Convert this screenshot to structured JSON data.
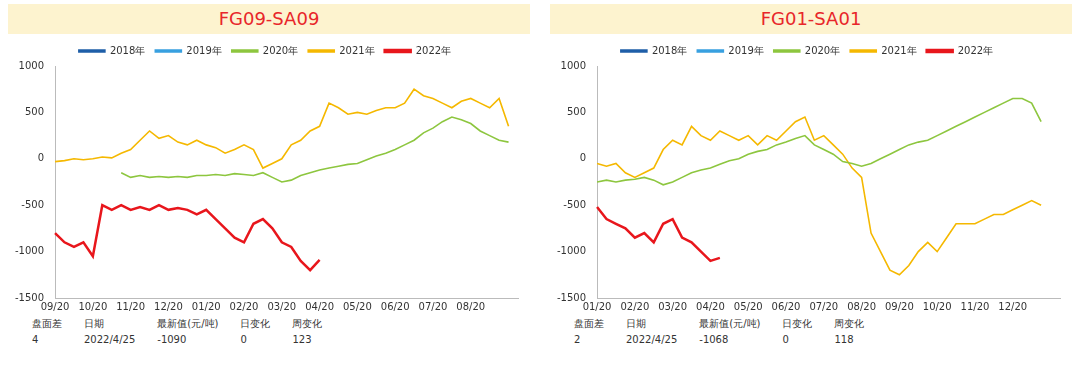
{
  "chart_data": [
    {
      "type": "line",
      "title": "FG09-SA09",
      "categories": [
        "09/20",
        null,
        null,
        null,
        "10/20",
        null,
        null,
        null,
        "11/20",
        null,
        null,
        null,
        "12/20",
        null,
        null,
        null,
        "01/20",
        null,
        null,
        null,
        "02/20",
        null,
        null,
        null,
        "03/20",
        null,
        null,
        null,
        "04/20",
        null,
        null,
        null,
        "05/20",
        null,
        null,
        null,
        "06/20",
        null,
        null,
        null,
        "07/20",
        null,
        null,
        null,
        "08/20",
        null,
        null,
        null,
        null,
        null
      ],
      "series": [
        {
          "name": "2018年",
          "color": "#1f5fa8",
          "values": [
            null,
            null,
            null,
            null,
            null,
            null,
            null,
            null,
            null,
            null,
            null,
            null,
            null,
            null,
            null,
            null,
            null,
            null,
            null,
            null,
            null,
            null,
            null,
            null,
            null,
            null,
            null,
            null,
            null,
            null,
            null,
            null,
            null,
            null,
            null,
            null,
            null,
            null,
            null,
            null,
            null,
            null,
            null,
            null,
            null,
            null,
            null,
            null,
            null,
            null
          ]
        },
        {
          "name": "2019年",
          "color": "#39a0e0",
          "values": [
            null,
            null,
            null,
            null,
            null,
            null,
            null,
            null,
            null,
            null,
            null,
            null,
            null,
            null,
            null,
            null,
            null,
            null,
            null,
            null,
            null,
            null,
            null,
            null,
            null,
            null,
            null,
            null,
            null,
            null,
            null,
            null,
            null,
            null,
            null,
            null,
            null,
            null,
            null,
            null,
            null,
            null,
            null,
            null,
            null,
            null,
            null,
            null,
            null,
            null
          ]
        },
        {
          "name": "2020年",
          "color": "#8dc63f",
          "values": [
            null,
            null,
            null,
            null,
            null,
            null,
            null,
            -150,
            -200,
            -180,
            -200,
            -190,
            -200,
            -190,
            -200,
            -180,
            -180,
            -170,
            -180,
            -160,
            -170,
            -180,
            -150,
            -200,
            -250,
            -230,
            -180,
            -150,
            -120,
            -100,
            -80,
            -60,
            -50,
            -10,
            30,
            60,
            100,
            150,
            200,
            280,
            330,
            400,
            450,
            420,
            380,
            300,
            250,
            200,
            180,
            null
          ]
        },
        {
          "name": "2021年",
          "color": "#f5b800",
          "values": [
            -30,
            -20,
            0,
            -10,
            0,
            20,
            10,
            60,
            100,
            200,
            300,
            220,
            250,
            180,
            150,
            200,
            150,
            120,
            60,
            100,
            150,
            100,
            -100,
            -50,
            0,
            150,
            200,
            300,
            350,
            600,
            550,
            480,
            500,
            480,
            520,
            550,
            550,
            600,
            750,
            680,
            650,
            600,
            550,
            620,
            650,
            600,
            550,
            650,
            350,
            null
          ]
        },
        {
          "name": "2022年",
          "color": "#e8161c",
          "values": [
            -800,
            -900,
            -950,
            -900,
            -1050,
            -500,
            -550,
            -500,
            -550,
            -520,
            -550,
            -500,
            -550,
            -530,
            -550,
            -600,
            -550,
            -650,
            -750,
            -850,
            -900,
            -700,
            -650,
            -750,
            -900,
            -950,
            -1100,
            -1200,
            -1090,
            null,
            null,
            null,
            null,
            null,
            null,
            null,
            null,
            null,
            null,
            null,
            null,
            null,
            null,
            null,
            null,
            null,
            null,
            null,
            null,
            null
          ]
        }
      ],
      "ylim": [
        -1500,
        1000
      ],
      "yticks": [
        -1500,
        -1000,
        -500,
        0,
        500,
        1000
      ],
      "grid": false,
      "legend": "top",
      "table": {
        "header": [
          "盘面差",
          "日期",
          "最新值(元/吨)",
          "日变化",
          "周变化"
        ],
        "rows": [
          [
            4,
            "2022/4/25",
            -1090,
            0,
            123
          ]
        ]
      }
    },
    {
      "type": "line",
      "title": "FG01-SA01",
      "categories": [
        "01/20",
        null,
        null,
        null,
        "02/20",
        null,
        null,
        null,
        "03/20",
        null,
        null,
        null,
        "04/20",
        null,
        null,
        null,
        "05/20",
        null,
        null,
        null,
        "06/20",
        null,
        null,
        null,
        "07/20",
        null,
        null,
        null,
        "08/20",
        null,
        null,
        null,
        "09/20",
        null,
        null,
        null,
        "10/20",
        null,
        null,
        null,
        "11/20",
        null,
        null,
        null,
        "12/20",
        null,
        null,
        null,
        null,
        null
      ],
      "series": [
        {
          "name": "2018年",
          "color": "#1f5fa8",
          "values": [
            null,
            null,
            null,
            null,
            null,
            null,
            null,
            null,
            null,
            null,
            null,
            null,
            null,
            null,
            null,
            null,
            null,
            null,
            null,
            null,
            null,
            null,
            null,
            null,
            null,
            null,
            null,
            null,
            null,
            null,
            null,
            null,
            null,
            null,
            null,
            null,
            null,
            null,
            null,
            null,
            null,
            null,
            null,
            null,
            null,
            null,
            null,
            null,
            null,
            null
          ]
        },
        {
          "name": "2019年",
          "color": "#39a0e0",
          "values": [
            null,
            null,
            null,
            null,
            null,
            null,
            null,
            null,
            null,
            null,
            null,
            null,
            null,
            null,
            null,
            null,
            null,
            null,
            null,
            null,
            null,
            null,
            null,
            null,
            null,
            null,
            null,
            null,
            null,
            null,
            null,
            null,
            null,
            null,
            null,
            null,
            null,
            null,
            null,
            null,
            null,
            null,
            null,
            null,
            null,
            null,
            null,
            null,
            null,
            null
          ]
        },
        {
          "name": "2020年",
          "color": "#8dc63f",
          "values": [
            -250,
            -230,
            -250,
            -230,
            -220,
            -200,
            -230,
            -280,
            -250,
            -200,
            -150,
            -120,
            -100,
            -60,
            -20,
            0,
            50,
            80,
            100,
            150,
            180,
            220,
            250,
            150,
            100,
            50,
            -30,
            -50,
            -80,
            -50,
            0,
            50,
            100,
            150,
            180,
            200,
            250,
            300,
            350,
            400,
            450,
            500,
            550,
            600,
            650,
            650,
            600,
            400,
            null,
            null
          ]
        },
        {
          "name": "2021年",
          "color": "#f5b800",
          "values": [
            -50,
            -80,
            -50,
            -150,
            -200,
            -150,
            -100,
            100,
            200,
            150,
            350,
            250,
            200,
            300,
            250,
            200,
            250,
            150,
            250,
            200,
            300,
            400,
            450,
            200,
            250,
            150,
            50,
            -100,
            -200,
            -800,
            -1000,
            -1200,
            -1250,
            -1150,
            -1000,
            -900,
            -1000,
            -850,
            -700,
            -700,
            -700,
            -650,
            -600,
            -600,
            -550,
            -500,
            -450,
            -500,
            null,
            null
          ]
        },
        {
          "name": "2022年",
          "color": "#e8161c",
          "values": [
            -520,
            -650,
            -700,
            -750,
            -850,
            -800,
            -900,
            -700,
            -650,
            -850,
            -900,
            -1000,
            -1100,
            -1068,
            null,
            null,
            null,
            null,
            null,
            null,
            null,
            null,
            null,
            null,
            null,
            null,
            null,
            null,
            null,
            null,
            null,
            null,
            null,
            null,
            null,
            null,
            null,
            null,
            null,
            null,
            null,
            null,
            null,
            null,
            null,
            null,
            null,
            null,
            null,
            null
          ]
        }
      ],
      "ylim": [
        -1500,
        1000
      ],
      "yticks": [
        -1500,
        -1000,
        -500,
        0,
        500,
        1000
      ],
      "grid": false,
      "legend": "top",
      "table": {
        "header": [
          "盘面差",
          "日期",
          "最新值(元/吨)",
          "日变化",
          "周变化"
        ],
        "rows": [
          [
            2,
            "2022/4/25",
            -1068,
            0,
            118
          ]
        ]
      }
    }
  ]
}
